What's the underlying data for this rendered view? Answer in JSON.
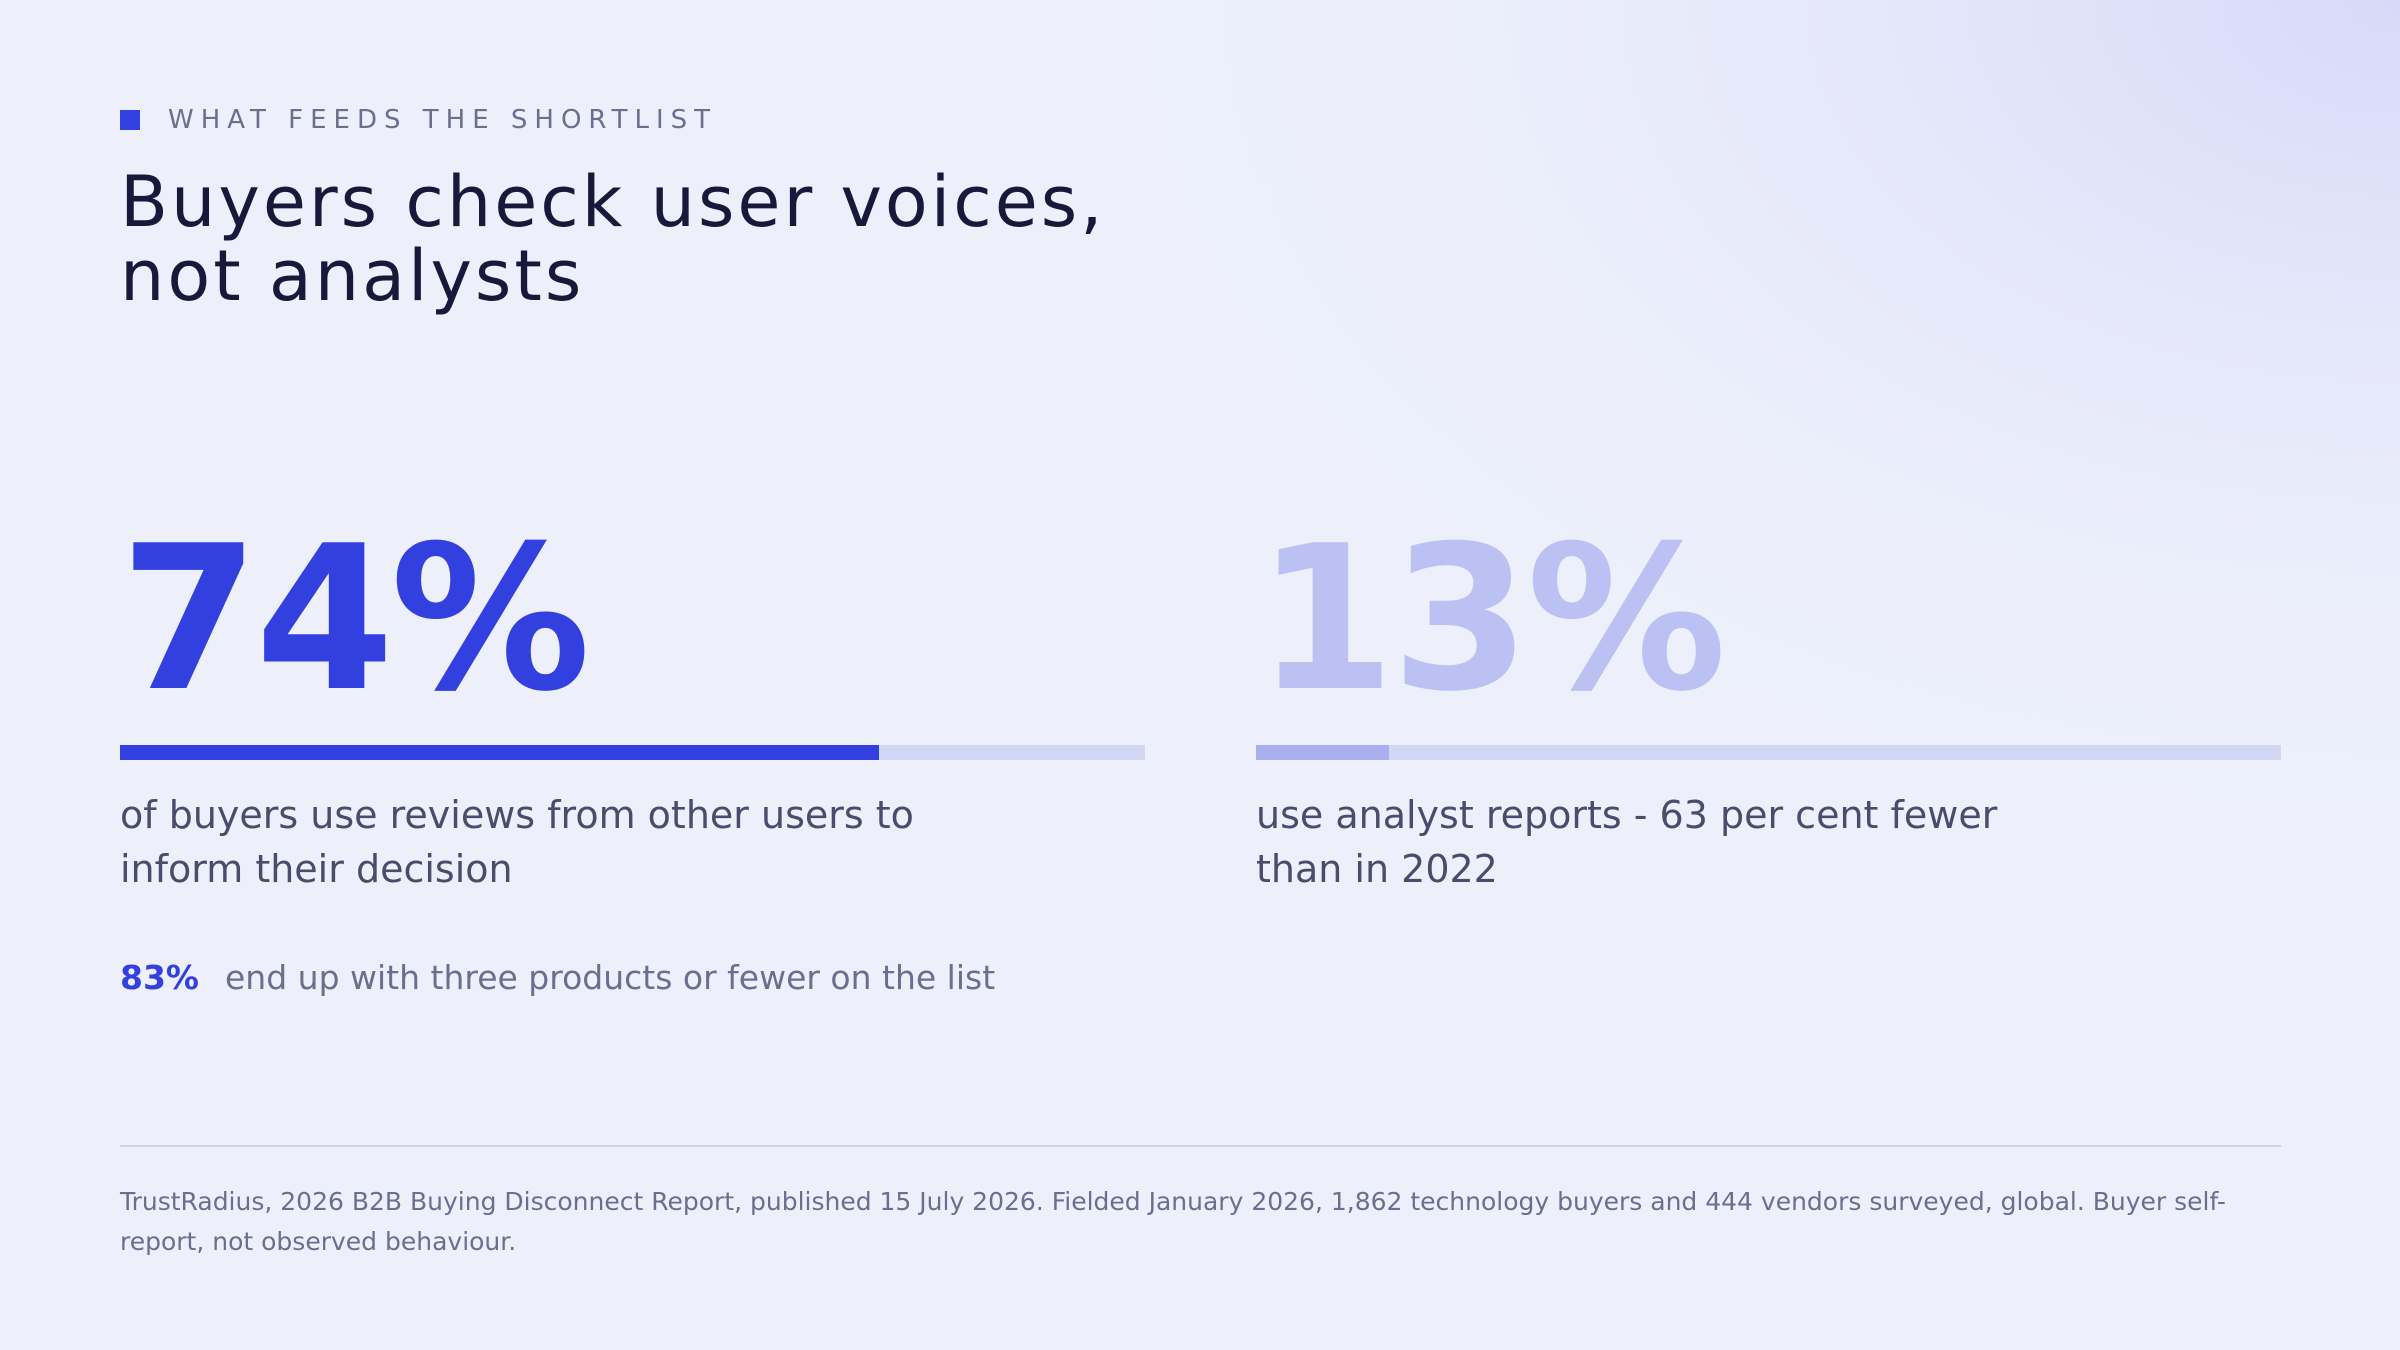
{
  "eyebrow": {
    "text": "WHAT FEEDS THE SHORTLIST",
    "accent_color": "#3340e0"
  },
  "headline": {
    "line1": "Buyers check user voices,",
    "line2": "not analysts"
  },
  "stats": [
    {
      "value": "74%",
      "bar_fraction": 0.74,
      "description": "of buyers use reviews from other users to inform their decision",
      "color": "#3340e0"
    },
    {
      "value": "13%",
      "bar_fraction": 0.13,
      "description": "use analyst reports - 63 per cent fewer than in 2022",
      "color": "#bcc1f3"
    }
  ],
  "aside": {
    "value": "83%",
    "text": "end up with three products or fewer on the list"
  },
  "footnote": "TrustRadius, 2026 B2B Buying Disconnect Report, published 15 July 2026. Fielded January 2026, 1,862 technology buyers and 444 vendors surveyed, global. Buyer self-report, not observed behaviour."
}
